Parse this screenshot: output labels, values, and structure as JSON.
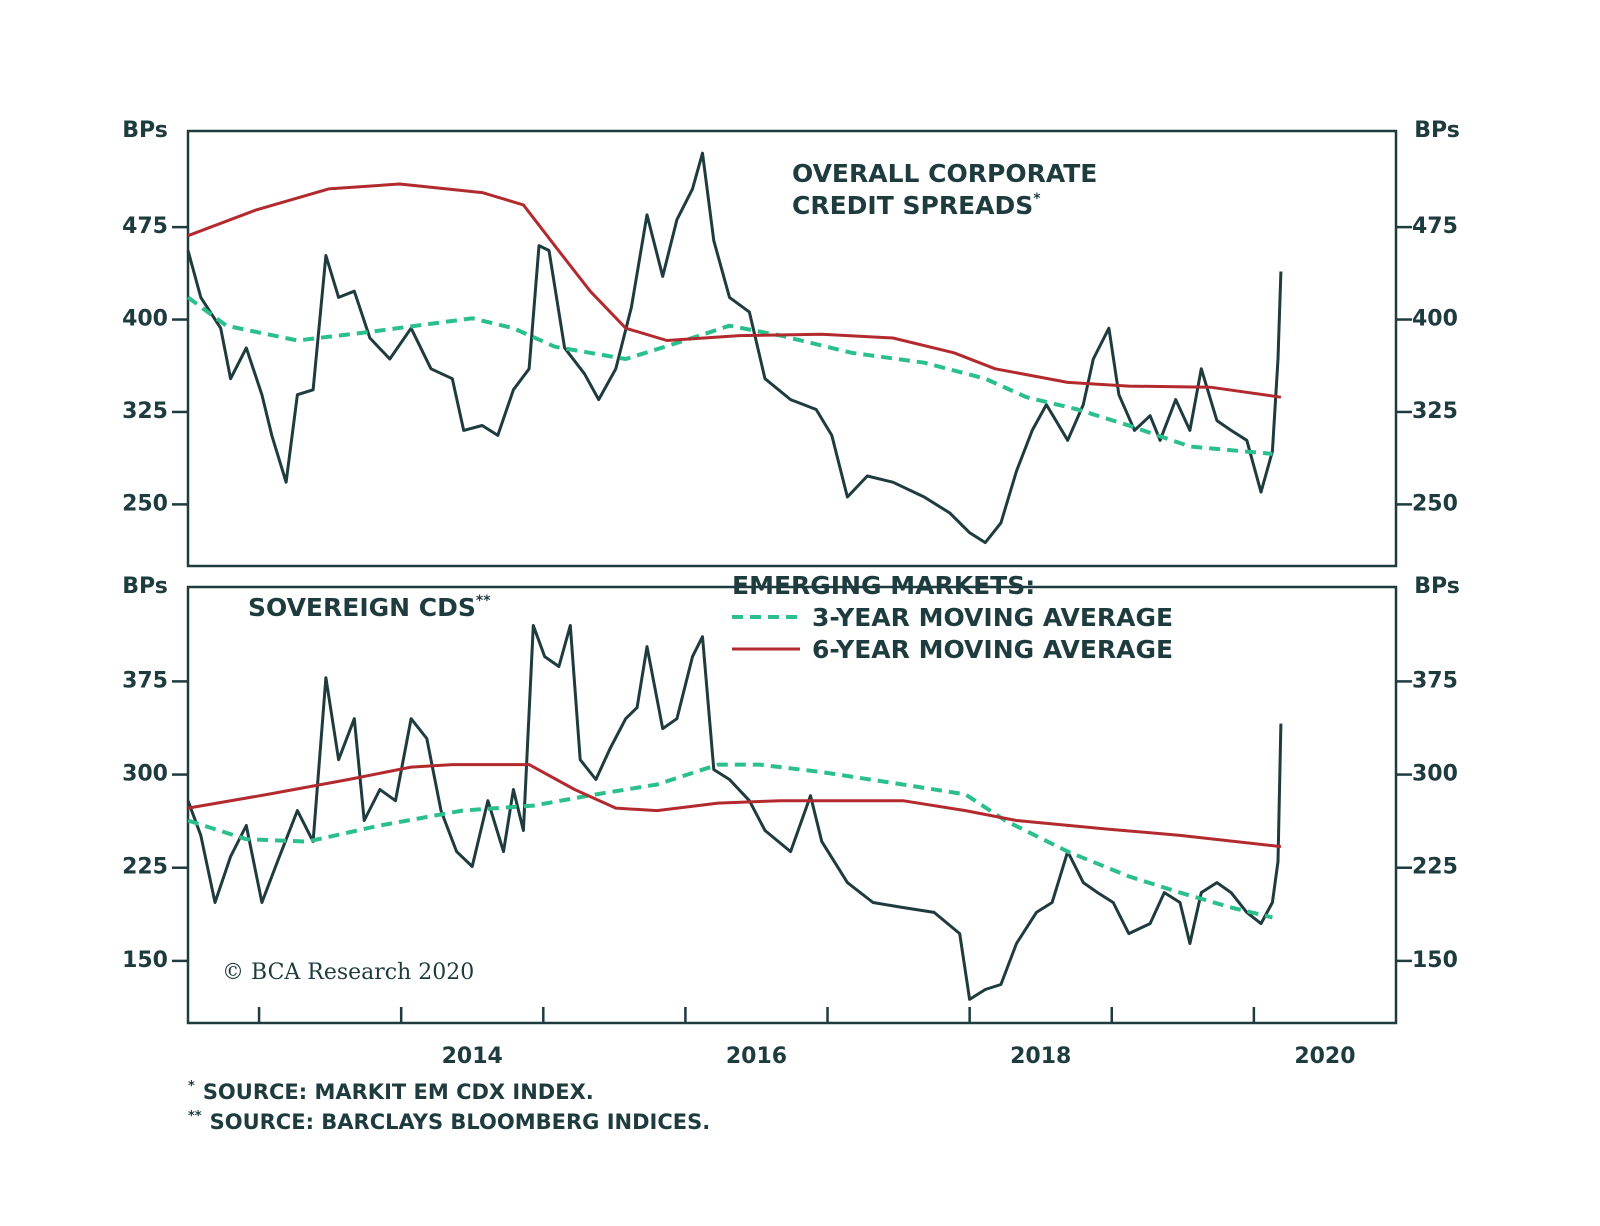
{
  "chart_data": [
    {
      "type": "line",
      "title": [
        "OVERALL CORPORATE",
        "CREDIT SPREADS"
      ],
      "title_note": "*",
      "ylabel": "BPs",
      "xlim": [
        2012.5,
        2021
      ],
      "ylim": [
        200,
        553
      ],
      "yticks": [
        250,
        325,
        400,
        475
      ],
      "series": [
        {
          "color": "#1e3b3e",
          "dash": false,
          "x": [
            2012.5,
            2012.59,
            2012.73,
            2012.8,
            2012.91,
            2013.02,
            2013.09,
            2013.19,
            2013.27,
            2013.38,
            2013.47,
            2013.56,
            2013.67,
            2013.78,
            2013.92,
            2014.07,
            2014.21,
            2014.36,
            2014.44,
            2014.57,
            2014.68,
            2014.79,
            2014.9,
            2014.97,
            2015.04,
            2015.15,
            2015.29,
            2015.39,
            2015.51,
            2015.62,
            2015.73,
            2015.84,
            2015.94,
            2016.05,
            2016.12,
            2016.2,
            2016.31,
            2016.45,
            2016.56,
            2016.74,
            2016.92,
            2017.03,
            2017.14,
            2017.28,
            2017.46,
            2017.68,
            2017.86,
            2018.0,
            2018.11,
            2018.22,
            2018.33,
            2018.44,
            2018.54,
            2018.69,
            2018.8,
            2018.87,
            2018.98,
            2019.05,
            2019.16,
            2019.27,
            2019.34,
            2019.45,
            2019.55,
            2019.63,
            2019.74,
            2019.84,
            2019.95,
            2020.05,
            2020.13,
            2020.17,
            2020.19
          ],
          "values": [
            456,
            418,
            393,
            352,
            377,
            339,
            306,
            268,
            339,
            343,
            452,
            418,
            423,
            385,
            368,
            393,
            360,
            352,
            310,
            314,
            306,
            343,
            360,
            460,
            456,
            377,
            356,
            335,
            360,
            410,
            485,
            435,
            481,
            506,
            535,
            464,
            418,
            406,
            352,
            335,
            327,
            306,
            256,
            273,
            268,
            256,
            243,
            227,
            219,
            235,
            277,
            310,
            331,
            302,
            331,
            368,
            393,
            339,
            310,
            322,
            302,
            335,
            310,
            360,
            318,
            310,
            302,
            260,
            293,
            368,
            439
          ]
        },
        {
          "color": "#2bbf8c",
          "dash": true,
          "x": [
            2012.5,
            2012.77,
            2013.27,
            2013.78,
            2014.5,
            2014.79,
            2015.08,
            2015.58,
            2015.94,
            2016.31,
            2016.67,
            2017.17,
            2017.68,
            2018.11,
            2018.4,
            2018.76,
            2019.12,
            2019.55,
            2020.13
          ],
          "values": [
            418,
            395,
            383,
            390,
            401,
            393,
            378,
            368,
            381,
            395,
            387,
            373,
            365,
            352,
            337,
            327,
            314,
            297,
            291
          ]
        },
        {
          "color": "#b32a2e",
          "dash": false,
          "x": [
            2012.5,
            2012.98,
            2013.49,
            2013.99,
            2014.57,
            2014.86,
            2015.08,
            2015.33,
            2015.58,
            2015.87,
            2016.38,
            2016.96,
            2017.46,
            2017.89,
            2018.18,
            2018.69,
            2019.12,
            2019.7,
            2020.19
          ],
          "values": [
            468,
            489,
            506,
            510,
            503,
            493,
            460,
            423,
            393,
            383,
            387,
            388,
            385,
            373,
            360,
            349,
            346,
            345,
            337
          ]
        }
      ]
    },
    {
      "type": "line",
      "title": "SOVEREIGN CDS",
      "title_note": "**",
      "ylabel": "BPs",
      "xlim": [
        2012.5,
        2021
      ],
      "ylim": [
        100,
        451
      ],
      "yticks": [
        150,
        225,
        300,
        375
      ],
      "xminor": [
        2013,
        2014,
        2015,
        2016,
        2017,
        2018,
        2019,
        2020
      ],
      "xticks": [
        {
          "value": 2014.5,
          "label": "2014"
        },
        {
          "value": 2016.5,
          "label": "2016"
        },
        {
          "value": 2018.5,
          "label": "2018"
        },
        {
          "value": 2020.5,
          "label": "2020"
        }
      ],
      "legend_title": "EMERGING MARKETS:",
      "series": [
        {
          "color": "#1e3b3e",
          "dash": false,
          "x": [
            2012.5,
            2012.59,
            2012.69,
            2012.8,
            2012.91,
            2013.02,
            2013.13,
            2013.27,
            2013.38,
            2013.47,
            2013.56,
            2013.67,
            2013.74,
            2013.85,
            2013.96,
            2014.07,
            2014.18,
            2014.28,
            2014.39,
            2014.5,
            2014.61,
            2014.72,
            2014.79,
            2014.86,
            2014.93,
            2015.01,
            2015.11,
            2015.19,
            2015.26,
            2015.37,
            2015.47,
            2015.58,
            2015.66,
            2015.73,
            2015.84,
            2015.94,
            2016.05,
            2016.12,
            2016.2,
            2016.31,
            2016.45,
            2016.56,
            2016.74,
            2016.88,
            2016.96,
            2017.14,
            2017.32,
            2017.53,
            2017.75,
            2017.93,
            2018.0,
            2018.11,
            2018.22,
            2018.33,
            2018.47,
            2018.58,
            2018.69,
            2018.8,
            2018.9,
            2019.01,
            2019.12,
            2019.27,
            2019.37,
            2019.48,
            2019.55,
            2019.63,
            2019.74,
            2019.84,
            2019.95,
            2020.05,
            2020.13,
            2020.17,
            2020.19
          ],
          "values": [
            279,
            251,
            197,
            234,
            259,
            197,
            230,
            271,
            246,
            378,
            312,
            345,
            263,
            288,
            279,
            345,
            329,
            271,
            238,
            226,
            279,
            238,
            288,
            255,
            420,
            395,
            387,
            420,
            312,
            296,
            321,
            345,
            354,
            403,
            337,
            345,
            395,
            411,
            304,
            296,
            279,
            255,
            238,
            283,
            246,
            213,
            197,
            193,
            189,
            172,
            119,
            127,
            131,
            164,
            189,
            197,
            238,
            213,
            205,
            197,
            172,
            180,
            205,
            197,
            164,
            205,
            213,
            205,
            189,
            180,
            197,
            230,
            341
          ]
        },
        {
          "name": "3-YEAR MOVING AVERAGE",
          "color": "#2bbf8c",
          "dash": true,
          "x": [
            2012.5,
            2012.91,
            2013.34,
            2013.85,
            2014.43,
            2014.93,
            2015.37,
            2015.8,
            2016.23,
            2016.52,
            2016.96,
            2017.53,
            2017.97,
            2018.25,
            2018.69,
            2019.12,
            2019.48,
            2019.84,
            2020.13
          ],
          "values": [
            263,
            248,
            246,
            259,
            271,
            275,
            284,
            292,
            308,
            308,
            302,
            292,
            284,
            263,
            238,
            218,
            205,
            193,
            185
          ]
        },
        {
          "name": "6-YEAR MOVING AVERAGE",
          "color": "#b32a2e",
          "dash": false,
          "x": [
            2012.5,
            2013.06,
            2013.63,
            2014.07,
            2014.36,
            2014.9,
            2015.22,
            2015.51,
            2015.8,
            2016.23,
            2016.67,
            2017.53,
            2017.97,
            2018.33,
            2018.98,
            2019.48,
            2020.19
          ],
          "values": [
            273,
            284,
            296,
            306,
            308,
            308,
            288,
            273,
            271,
            277,
            279,
            279,
            271,
            263,
            256,
            251,
            242
          ]
        }
      ]
    }
  ],
  "credit": "© BCA Research 2020",
  "footnotes": [
    {
      "mark": "*",
      "text": "SOURCE: MARKIT EM CDX INDEX."
    },
    {
      "mark": "**",
      "text": "SOURCE: BARCLAYS BLOOMBERG INDICES."
    }
  ]
}
